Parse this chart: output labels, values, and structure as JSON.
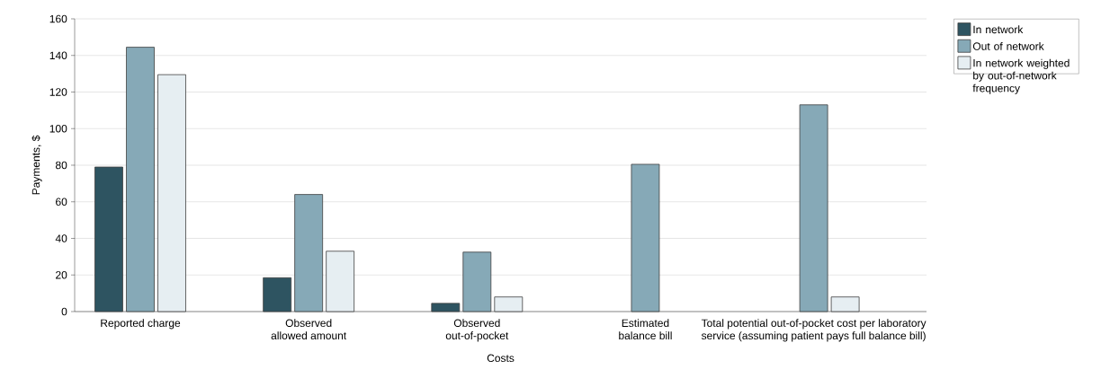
{
  "chart_data": {
    "type": "bar",
    "xlabel": "Costs",
    "ylabel": "Payments, $",
    "categories": [
      "Reported charge",
      "Observed allowed amount",
      "Observed out-of-pocket",
      "Estimated balance bill",
      "Total potential out-of-pocket cost per laboratory service (assuming patient pays full balance bill)"
    ],
    "series": [
      {
        "name": "In network",
        "color": "#2e5461",
        "values": [
          79,
          18.5,
          4.5,
          null,
          null
        ]
      },
      {
        "name": "Out of network",
        "color": "#86a9b7",
        "values": [
          144.5,
          64,
          32.5,
          80.5,
          113
        ]
      },
      {
        "name": "In network weighted by out-of-network frequency",
        "color": "#e6eef2",
        "values": [
          129.5,
          33,
          8,
          null,
          8
        ]
      }
    ],
    "ylim": [
      0,
      160
    ],
    "yticks": [
      0,
      20,
      40,
      60,
      80,
      100,
      120,
      140,
      160
    ],
    "grid": "y",
    "legend": "top right"
  }
}
